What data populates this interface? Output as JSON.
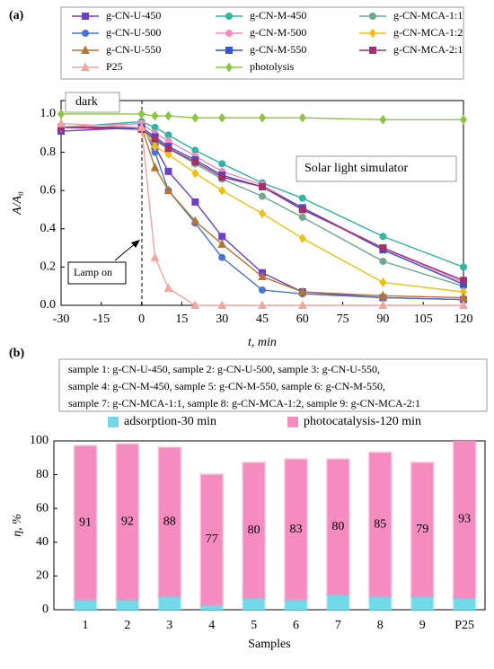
{
  "chart_data": [
    {
      "type": "line",
      "panel_label": "(a)",
      "xlabel": "t, min",
      "ylabel": "A/A₀",
      "annotations": [
        "dark",
        "Solar light simulator",
        "Lamp on"
      ],
      "x": [
        -30,
        0,
        5,
        10,
        20,
        30,
        45,
        60,
        90,
        120
      ],
      "xlim": [
        -30,
        120
      ],
      "xticks": [
        -30,
        -15,
        0,
        15,
        30,
        45,
        60,
        75,
        90,
        105,
        120
      ],
      "ylim": [
        0,
        1.07
      ],
      "yticks": [
        {
          "value": 0,
          "label": "0.0"
        },
        0.2,
        0.4,
        0.6,
        0.8,
        {
          "value": 1,
          "label": "1.0"
        }
      ],
      "legend_position": "top",
      "series": [
        {
          "name": "g-CN-U-450",
          "color": "#6a3fc9",
          "marker": "square",
          "values": [
            0.91,
            0.93,
            0.83,
            0.7,
            0.54,
            0.36,
            0.17,
            0.07,
            0.04,
            0.03
          ]
        },
        {
          "name": "g-CN-M-450",
          "color": "#2fb5a0",
          "marker": "circle",
          "values": [
            0.93,
            0.96,
            0.93,
            0.89,
            0.81,
            0.74,
            0.64,
            0.56,
            0.36,
            0.2
          ]
        },
        {
          "name": "g-CN-MCA-1:1",
          "color": "#6fa888",
          "marker": "circle",
          "values": [
            0.93,
            0.92,
            0.86,
            0.82,
            0.74,
            0.66,
            0.57,
            0.46,
            0.23,
            0.1
          ]
        },
        {
          "name": "g-CN-U-500",
          "color": "#4a74d0",
          "marker": "circle",
          "values": [
            0.93,
            0.95,
            0.8,
            0.6,
            0.43,
            0.25,
            0.08,
            0.06,
            0.04,
            0.03
          ]
        },
        {
          "name": "g-CN-M-500",
          "color": "#f08cc0",
          "marker": "circle",
          "values": [
            0.93,
            0.95,
            0.9,
            0.86,
            0.78,
            0.7,
            0.63,
            0.51,
            0.3,
            0.12
          ]
        },
        {
          "name": "g-CN-MCA-1:2",
          "color": "#f0c010",
          "marker": "diamond",
          "values": [
            0.93,
            0.93,
            0.83,
            0.79,
            0.69,
            0.6,
            0.48,
            0.35,
            0.12,
            0.07
          ]
        },
        {
          "name": "g-CN-U-550",
          "color": "#b8742c",
          "marker": "triangle",
          "values": [
            0.93,
            0.93,
            0.72,
            0.6,
            0.44,
            0.32,
            0.15,
            0.07,
            0.05,
            0.04
          ]
        },
        {
          "name": "g-CN-M-550",
          "color": "#3454d4",
          "marker": "square",
          "values": [
            0.93,
            0.93,
            0.88,
            0.83,
            0.76,
            0.68,
            0.62,
            0.51,
            0.29,
            0.11
          ]
        },
        {
          "name": "g-CN-MCA-2:1",
          "color": "#a3306e",
          "marker": "square",
          "values": [
            0.93,
            0.92,
            0.87,
            0.82,
            0.75,
            0.67,
            0.62,
            0.5,
            0.3,
            0.13
          ]
        },
        {
          "name": "P25",
          "color": "#f2a4a0",
          "marker": "triangle",
          "values": [
            0.95,
            0.93,
            0.25,
            0.09,
            0.0,
            0.0,
            0.0,
            0.0,
            0.0,
            0.0
          ]
        },
        {
          "name": "photolysis",
          "color": "#8cc63f",
          "marker": "diamond",
          "values": [
            1.0,
            1.0,
            0.99,
            0.99,
            0.98,
            0.98,
            0.98,
            0.98,
            0.97,
            0.97
          ]
        }
      ]
    },
    {
      "type": "stacked_bar",
      "panel_label": "(b)",
      "note_lines": [
        "sample 1: g-CN-U-450, sample 2: g-CN-U-500, sample 3: g-CN-U-550,",
        "sample 4: g-CN-M-450, sample 5: g-CN-M-550, sample 6: g-CN-M-550,",
        "sample 7: g-CN-MCA-1:1, sample 8: g-CN-MCA-1:2, sample 9: g-CN-MCA-2:1"
      ],
      "xlabel": "Samples",
      "ylabel": "η, %",
      "categories": [
        "1",
        "2",
        "3",
        "4",
        "5",
        "6",
        "7",
        "8",
        "9",
        "P25"
      ],
      "ylim": [
        0,
        100
      ],
      "yticks": [
        0,
        20,
        40,
        60,
        80,
        100
      ],
      "legend_position": "top",
      "series": [
        {
          "name": "adsorption-30 min",
          "color": "#72d9e9",
          "values": [
            6,
            6,
            8,
            3,
            7,
            6,
            9,
            8,
            8,
            7
          ]
        },
        {
          "name": "photocatalysis-120 min",
          "color": "#f48cbf",
          "show_labels": true,
          "values": [
            91,
            92,
            88,
            77,
            80,
            83,
            80,
            85,
            79,
            93
          ]
        }
      ]
    }
  ]
}
